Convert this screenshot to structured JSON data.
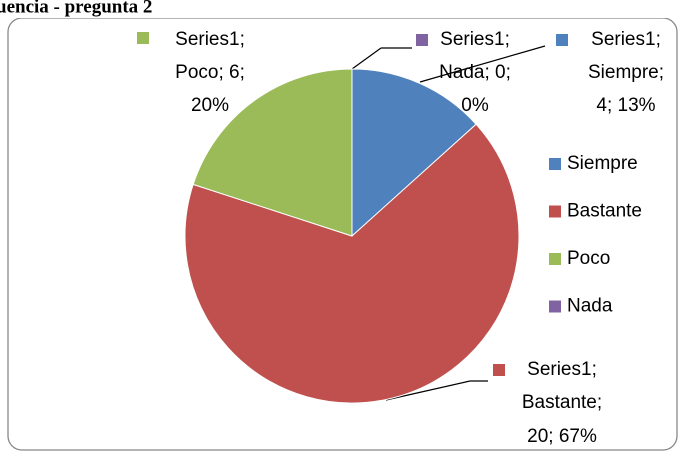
{
  "chart_data": {
    "type": "pie",
    "title": "uencia - pregunta 2",
    "series_name": "Series1",
    "categories": [
      "Siempre",
      "Bastante",
      "Poco",
      "Nada"
    ],
    "values": [
      4,
      20,
      6,
      0
    ],
    "value_labels": [
      [
        "Series1;",
        "Siempre;",
        "4; 13%"
      ],
      [
        "Series1;",
        "Bastante;",
        "20; 67%"
      ],
      [
        "Series1;",
        "Poco; 6;",
        "20%"
      ],
      [
        "Series1;",
        "Nada; 0;",
        "0%"
      ]
    ],
    "colors": [
      "#4f81bd",
      "#c0504d",
      "#9bbb59",
      "#8064a2"
    ],
    "legend": "right"
  }
}
